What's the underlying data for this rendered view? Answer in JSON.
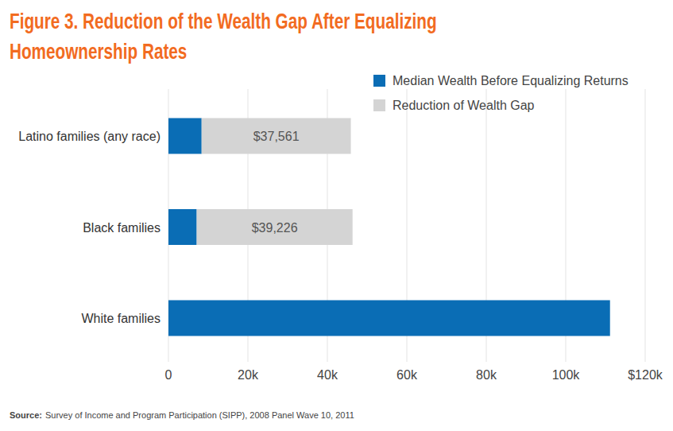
{
  "chart_data": {
    "type": "bar",
    "title": "Figure 3. Reduction of the Wealth Gap After Equalizing Homeownership Rates",
    "orientation": "horizontal",
    "stacked": true,
    "grid": true,
    "legend": "top-right",
    "data_labels": true,
    "categories": [
      "Latino families (any race)",
      "Black families",
      "White families"
    ],
    "series": [
      {
        "name": "Median Wealth Before Equalizing Returns",
        "color": "#0a6db5",
        "values": [
          8348,
          7113,
          111146
        ]
      },
      {
        "name": "Reduction of Wealth Gap",
        "color": "#d4d4d4",
        "values": [
          37561,
          39226,
          null
        ],
        "value_labels": [
          "$37,561",
          "$39,226",
          null
        ]
      }
    ],
    "xlim": [
      0,
      120000
    ],
    "xticks": [
      0,
      {
        "value": 20000,
        "label": "20k"
      },
      {
        "value": 40000,
        "label": "40k"
      },
      {
        "value": 60000,
        "label": "60k"
      },
      {
        "value": 80000,
        "label": "80k"
      },
      {
        "value": 100000,
        "label": "100k"
      },
      {
        "value": 120000,
        "label": "$120k"
      }
    ],
    "source": {
      "label": "Source:",
      "text": "Survey of Income and Program Participation (SIPP), 2008 Panel Wave 10, 2011"
    }
  }
}
